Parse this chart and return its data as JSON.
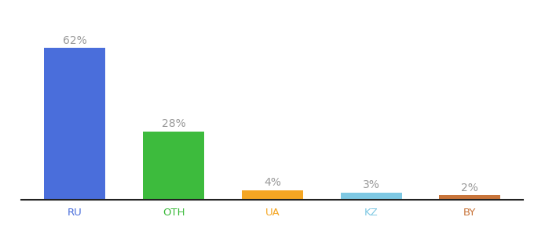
{
  "categories": [
    "RU",
    "OTH",
    "UA",
    "KZ",
    "BY"
  ],
  "values": [
    62,
    28,
    4,
    3,
    2
  ],
  "labels": [
    "62%",
    "28%",
    "4%",
    "3%",
    "2%"
  ],
  "bar_colors": [
    "#4a6edb",
    "#3dbb3d",
    "#f5a623",
    "#7ec8e3",
    "#c8743a"
  ],
  "ylim": [
    0,
    72
  ],
  "background_color": "#ffffff",
  "label_fontsize": 10,
  "tick_fontsize": 9.5,
  "label_color": "#999999",
  "tick_color": "#4a6edb",
  "bar_width": 0.62
}
